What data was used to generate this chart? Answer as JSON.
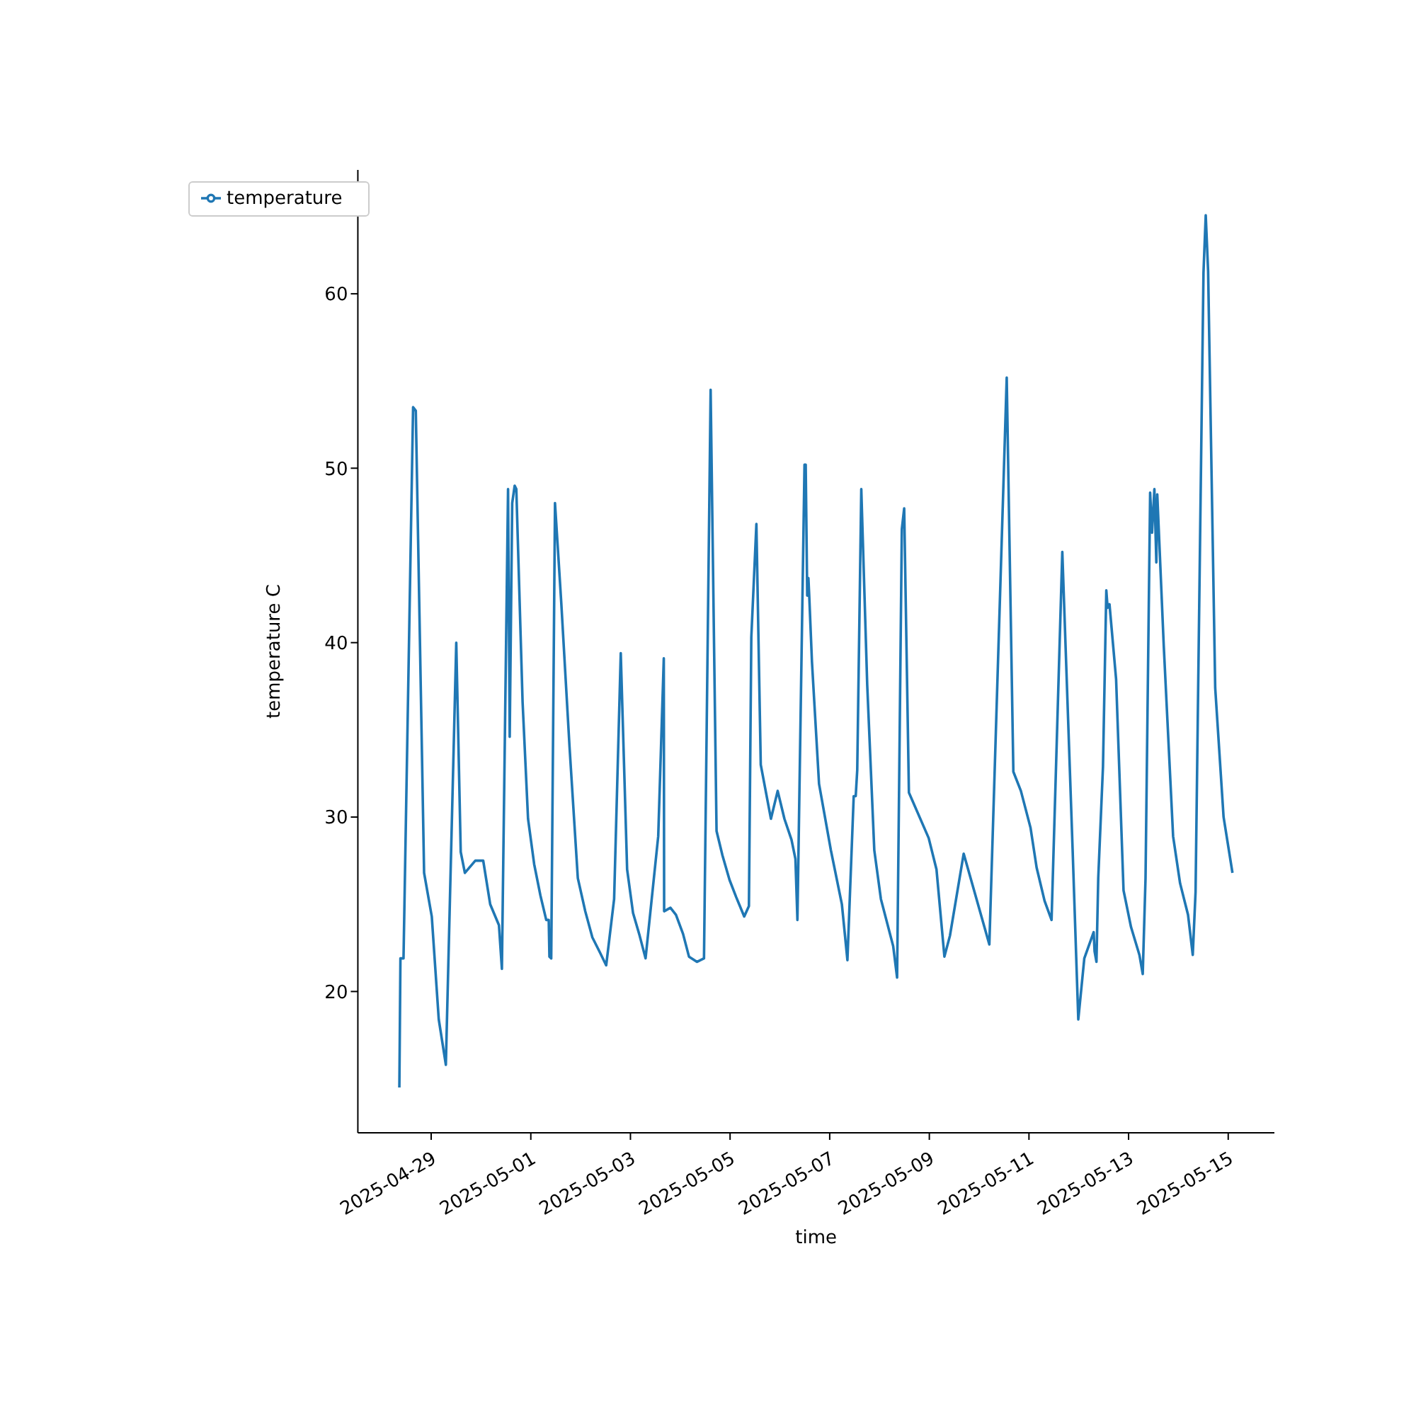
{
  "chart_data": {
    "type": "line",
    "xlabel": "time",
    "ylabel": "temperature C",
    "x": [
      "2025-04-28T08:40",
      "2025-04-28T09:11",
      "2025-04-28T10:40",
      "2025-04-28T15:17",
      "2025-04-28T16:35",
      "2025-04-28T20:35",
      "2025-04-29T00:17",
      "2025-04-29T03:39",
      "2025-04-29T07:04",
      "2025-04-29T12:05",
      "2025-04-29T14:14",
      "2025-04-29T16:14",
      "2025-04-29T21:15",
      "2025-04-30T01:04",
      "2025-04-30T04:26",
      "2025-04-30T08:39",
      "2025-04-30T10:04",
      "2025-04-30T13:02",
      "2025-04-30T13:50",
      "2025-04-30T15:02",
      "2025-04-30T16:13",
      "2025-04-30T17:01",
      "2025-04-30T20:02",
      "2025-04-30T22:40",
      "2025-05-01T01:37",
      "2025-05-01T04:38",
      "2025-05-01T07:26",
      "2025-05-01T08:38",
      "2025-05-01T08:58",
      "2025-05-01T09:50",
      "2025-05-01T11:39",
      "2025-05-01T14:40",
      "2025-05-01T18:40",
      "2025-05-01T22:39",
      "2025-05-02T02:14",
      "2025-05-02T05:39",
      "2025-05-02T09:28",
      "2025-05-02T12:19",
      "2025-05-02T16:08",
      "2025-05-02T19:20",
      "2025-05-02T22:24",
      "2025-05-03T01:15",
      "2025-05-03T04:26",
      "2025-05-03T07:17",
      "2025-05-03T13:23",
      "2025-05-03T16:04",
      "2025-05-03T16:14",
      "2025-05-03T19:16",
      "2025-05-03T21:56",
      "2025-05-04T01:21",
      "2025-05-04T04:12",
      "2025-05-04T08:01",
      "2025-05-04T11:26",
      "2025-05-04T14:38",
      "2025-05-04T17:29",
      "2025-05-04T20:20",
      "2025-05-04T23:44",
      "2025-05-05T02:59",
      "2025-05-05T06:49",
      "2025-05-05T09:05",
      "2025-05-05T10:14",
      "2025-05-05T12:41",
      "2025-05-05T14:47",
      "2025-05-05T19:41",
      "2025-05-05T22:56",
      "2025-05-06T02:11",
      "2025-05-06T05:36",
      "2025-05-06T07:29",
      "2025-05-06T08:27",
      "2025-05-06T11:52",
      "2025-05-06T12:26",
      "2025-05-06T13:10",
      "2025-05-06T13:44",
      "2025-05-06T14:08",
      "2025-05-06T15:27",
      "2025-05-06T18:52",
      "2025-05-07T00:34",
      "2025-05-07T05:52",
      "2025-05-07T08:32",
      "2025-05-07T11:34",
      "2025-05-07T12:32",
      "2025-05-07T13:16",
      "2025-05-07T15:13",
      "2025-05-07T18:04",
      "2025-05-07T21:29",
      "2025-05-08T00:40",
      "2025-05-08T06:35",
      "2025-05-08T08:28",
      "2025-05-08T10:45",
      "2025-05-08T11:53",
      "2025-05-08T14:10",
      "2025-05-08T23:41",
      "2025-05-09T03:27",
      "2025-05-09T07:16",
      "2025-05-09T09:56",
      "2025-05-09T16:33",
      "2025-05-10T04:55",
      "2025-05-10T13:17",
      "2025-05-10T16:29",
      "2025-05-10T20:07",
      "2025-05-11T00:44",
      "2025-05-11T03:42",
      "2025-05-11T07:31",
      "2025-05-11T10:53",
      "2025-05-11T16:04",
      "2025-05-11T21:01",
      "2025-05-11T23:46",
      "2025-05-12T02:40",
      "2025-05-12T07:10",
      "2025-05-12T07:37",
      "2025-05-12T08:31",
      "2025-05-12T09:23",
      "2025-05-12T11:40",
      "2025-05-12T13:16",
      "2025-05-12T13:53",
      "2025-05-12T14:48",
      "2025-05-12T17:59",
      "2025-05-12T21:34",
      "2025-05-13T01:10",
      "2025-05-13T05:13",
      "2025-05-13T06:49",
      "2025-05-13T08:10",
      "2025-05-13T10:23",
      "2025-05-13T11:18",
      "2025-05-13T12:26",
      "2025-05-13T13:22",
      "2025-05-13T13:49",
      "2025-05-13T16:57",
      "2025-05-13T21:27",
      "2025-05-14T00:49",
      "2025-05-14T04:38",
      "2025-05-14T06:55",
      "2025-05-14T08:16",
      "2025-05-14T12:05",
      "2025-05-14T13:10",
      "2025-05-14T14:19",
      "2025-05-14T17:44",
      "2025-05-14T21:46",
      "2025-05-15T02:03"
    ],
    "series": [
      {
        "name": "temperature",
        "color": "#1f77b4",
        "values": [
          14.5,
          21.9,
          21.9,
          53.5,
          53.3,
          26.8,
          24.3,
          18.4,
          15.8,
          40.0,
          28.0,
          26.8,
          27.5,
          27.5,
          25.0,
          23.8,
          21.3,
          48.8,
          34.6,
          48.0,
          49.0,
          48.8,
          36.6,
          29.9,
          27.3,
          25.5,
          24.1,
          24.1,
          22.0,
          21.9,
          48.0,
          42.3,
          34.0,
          26.5,
          24.6,
          23.1,
          22.2,
          21.5,
          25.3,
          39.4,
          27.0,
          24.5,
          23.2,
          21.9,
          28.9,
          39.1,
          24.6,
          24.8,
          24.4,
          23.3,
          22.0,
          21.7,
          21.9,
          54.5,
          29.2,
          27.8,
          26.4,
          25.4,
          24.3,
          24.9,
          40.3,
          46.8,
          33.0,
          29.9,
          31.5,
          29.9,
          28.7,
          27.6,
          24.1,
          50.2,
          50.2,
          42.7,
          43.7,
          42.7,
          38.9,
          31.9,
          28.1,
          25.0,
          21.8,
          31.2,
          31.2,
          32.7,
          48.8,
          37.6,
          28.1,
          25.3,
          22.6,
          20.8,
          46.5,
          47.7,
          31.4,
          28.8,
          27.0,
          22.0,
          23.2,
          27.9,
          22.7,
          55.2,
          32.6,
          31.5,
          29.4,
          27.1,
          25.2,
          24.1,
          45.2,
          28.2,
          18.4,
          21.9,
          23.4,
          22.3,
          21.7,
          26.5,
          32.9,
          43.0,
          42.0,
          42.2,
          37.9,
          25.8,
          23.7,
          22.1,
          21.0,
          26.5,
          48.6,
          46.3,
          48.8,
          44.6,
          48.5,
          39.8,
          28.9,
          26.2,
          24.4,
          22.1,
          25.7,
          61.2,
          64.5,
          61.3,
          37.4,
          30.0,
          26.8
        ]
      }
    ],
    "xlim": [
      "2025-04-27T12:40",
      "2025-05-15T22:15"
    ],
    "xticks": [
      "2025-04-29",
      "2025-05-01",
      "2025-05-03",
      "2025-05-05",
      "2025-05-07",
      "2025-05-09",
      "2025-05-11",
      "2025-05-13",
      "2025-05-15"
    ],
    "ylim": [
      11.9,
      67.1
    ],
    "yticks": [
      20,
      30,
      40,
      50,
      60
    ],
    "legend": "top left",
    "grid": false,
    "marker": "none",
    "line_style": "solid"
  }
}
